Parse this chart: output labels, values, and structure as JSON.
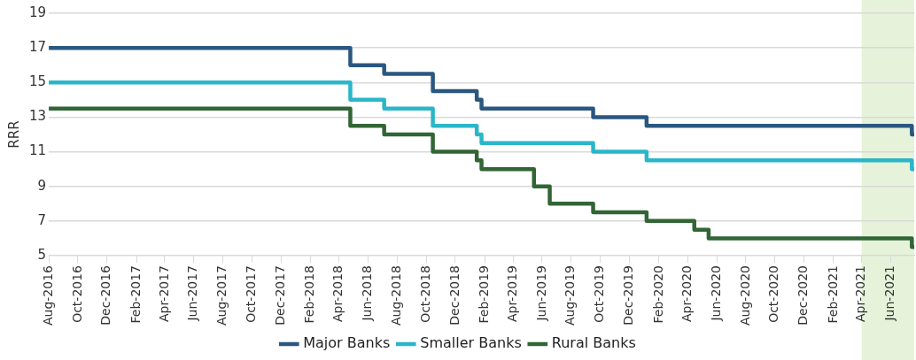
{
  "chart_data": {
    "type": "step",
    "ylabel": "RRR",
    "x": [
      "2016-08-01",
      "2018-04-25",
      "2018-07-05",
      "2018-10-15",
      "2019-01-15",
      "2019-01-25",
      "2019-05-15",
      "2019-06-17",
      "2019-09-16",
      "2020-01-06",
      "2020-04-15",
      "2020-05-15",
      "2021-07-15",
      "2021-07-20"
    ],
    "series": [
      {
        "name": "Major Banks",
        "color": "#2a5780",
        "values": [
          17,
          16,
          15.5,
          14.5,
          14,
          13.5,
          13.5,
          13.5,
          13,
          12.5,
          12.5,
          12.5,
          12,
          12
        ]
      },
      {
        "name": "Smaller Banks",
        "color": "#2bb6c9",
        "values": [
          15,
          14,
          13.5,
          12.5,
          12,
          11.5,
          11.5,
          11.5,
          11,
          10.5,
          10.5,
          10.5,
          10,
          10
        ]
      },
      {
        "name": "Rural Banks",
        "color": "#326535",
        "values": [
          13.5,
          12.5,
          12,
          11,
          10.5,
          10,
          9,
          8,
          7.5,
          7,
          6.5,
          6,
          5.5,
          5.5
        ]
      }
    ],
    "xlim": [
      "2016-08-01",
      "2021-07-20"
    ],
    "xticks": [
      {
        "value": "2016-08-01",
        "label": "Aug-2016"
      },
      {
        "value": "2016-10-01",
        "label": "Oct-2016"
      },
      {
        "value": "2016-12-01",
        "label": "Dec-2016"
      },
      {
        "value": "2017-02-01",
        "label": "Feb-2017"
      },
      {
        "value": "2017-04-01",
        "label": "Apr-2017"
      },
      {
        "value": "2017-06-01",
        "label": "Jun-2017"
      },
      {
        "value": "2017-08-01",
        "label": "Aug-2017"
      },
      {
        "value": "2017-10-01",
        "label": "Oct-2017"
      },
      {
        "value": "2017-12-01",
        "label": "Dec-2017"
      },
      {
        "value": "2018-02-01",
        "label": "Feb-2018"
      },
      {
        "value": "2018-04-01",
        "label": "Apr-2018"
      },
      {
        "value": "2018-06-01",
        "label": "Jun-2018"
      },
      {
        "value": "2018-08-01",
        "label": "Aug-2018"
      },
      {
        "value": "2018-10-01",
        "label": "Oct-2018"
      },
      {
        "value": "2018-12-01",
        "label": "Dec-2018"
      },
      {
        "value": "2019-02-01",
        "label": "Feb-2019"
      },
      {
        "value": "2019-04-01",
        "label": "Apr-2019"
      },
      {
        "value": "2019-06-01",
        "label": "Jun-2019"
      },
      {
        "value": "2019-08-01",
        "label": "Aug-2019"
      },
      {
        "value": "2019-10-01",
        "label": "Oct-2019"
      },
      {
        "value": "2019-12-01",
        "label": "Dec-2019"
      },
      {
        "value": "2020-02-01",
        "label": "Feb-2020"
      },
      {
        "value": "2020-04-01",
        "label": "Apr-2020"
      },
      {
        "value": "2020-06-01",
        "label": "Jun-2020"
      },
      {
        "value": "2020-08-01",
        "label": "Aug-2020"
      },
      {
        "value": "2020-10-01",
        "label": "Oct-2020"
      },
      {
        "value": "2020-12-01",
        "label": "Dec-2020"
      },
      {
        "value": "2021-02-01",
        "label": "Feb-2021"
      },
      {
        "value": "2021-04-01",
        "label": "Apr-2021"
      },
      {
        "value": "2021-06-01",
        "label": "Jun-2021"
      }
    ],
    "ylim": [
      5,
      19
    ],
    "yticks": [
      5,
      7,
      9,
      11,
      13,
      15,
      17,
      19
    ],
    "bands": [
      {
        "axis": "x",
        "from": "2021-04-01",
        "to": "2021-07-20",
        "color": "#e6f2d9"
      }
    ],
    "grid": "y",
    "legend": "bottom"
  }
}
